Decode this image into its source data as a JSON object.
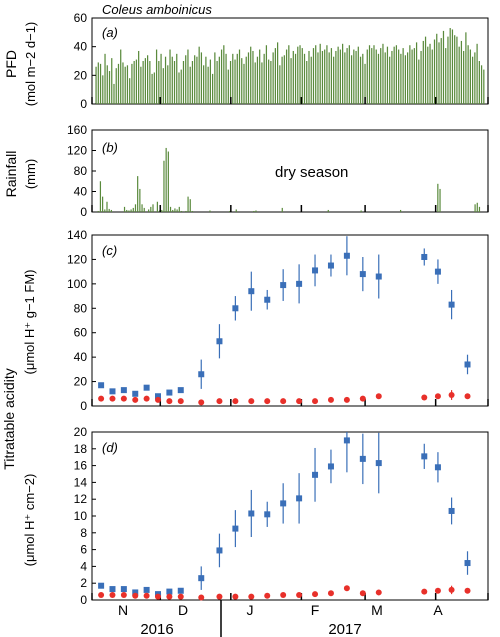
{
  "species": "Coleus amboinicus",
  "panel_labels": [
    "(a)",
    "(b)",
    "(c)",
    "(d)"
  ],
  "annotation": "dry season",
  "months": [
    "N",
    "D",
    "J",
    "F",
    "M",
    "A"
  ],
  "years": [
    "2016",
    "2017"
  ],
  "colors": {
    "pfd_bar": "#5a8a3c",
    "rain_bar": "#5a8a3c",
    "blue": "#3a6fb8",
    "red": "#e8302a",
    "axis": "#000000"
  },
  "chart_data": [
    {
      "type": "bar",
      "id": "a",
      "ylabel_line1": "PFD",
      "ylabel_line2": "(mol m−2 d−1)",
      "ylim": [
        0,
        60
      ],
      "yticks": [
        0,
        20,
        40,
        60
      ],
      "x_range_days": [
        0,
        174
      ],
      "values": [
        26,
        29,
        28,
        20,
        35,
        27,
        23,
        32,
        14,
        25,
        28,
        38,
        29,
        26,
        27,
        18,
        28,
        30,
        31,
        37,
        26,
        30,
        32,
        34,
        30,
        21,
        22,
        38,
        30,
        35,
        25,
        33,
        27,
        38,
        33,
        30,
        35,
        22,
        24,
        30,
        34,
        38,
        26,
        30,
        34,
        33,
        40,
        36,
        27,
        33,
        26,
        31,
        21,
        36,
        30,
        33,
        38,
        41,
        35,
        24,
        30,
        35,
        31,
        35,
        38,
        32,
        28,
        33,
        36,
        40,
        37,
        29,
        33,
        38,
        29,
        35,
        41,
        31,
        30,
        36,
        39,
        43,
        27,
        33,
        34,
        38,
        41,
        32,
        37,
        35,
        40,
        41,
        39,
        35,
        30,
        37,
        33,
        39,
        41,
        36,
        42,
        37,
        38,
        41,
        36,
        39,
        33,
        37,
        40,
        38,
        42,
        36,
        39,
        41,
        34,
        38,
        37,
        40,
        33,
        35,
        28,
        38,
        41,
        39,
        41,
        38,
        35,
        39,
        42,
        36,
        40,
        33,
        37,
        40,
        41,
        38,
        35,
        39,
        34,
        36,
        41,
        38,
        39,
        43,
        31,
        37,
        44,
        47,
        40,
        42,
        38,
        45,
        49,
        43,
        46,
        51,
        39,
        47,
        53,
        52,
        48,
        47,
        40,
        44,
        37,
        50,
        41,
        38,
        33,
        36,
        42,
        30,
        27,
        24
      ]
    },
    {
      "type": "bar",
      "id": "b",
      "ylabel_line1": "Rainfall",
      "ylabel_line2": "(mm)",
      "ylim": [
        0,
        160
      ],
      "yticks": [
        0,
        40,
        80,
        120,
        160
      ],
      "x_range_days": [
        0,
        174
      ],
      "values": [
        0,
        2,
        60,
        30,
        5,
        20,
        6,
        4,
        0,
        0,
        0,
        0,
        0,
        10,
        4,
        3,
        5,
        8,
        15,
        70,
        45,
        15,
        8,
        0,
        5,
        10,
        15,
        0,
        20,
        3,
        4,
        100,
        125,
        118,
        10,
        4,
        7,
        5,
        10,
        2,
        0,
        2,
        30,
        25,
        2,
        0,
        0,
        0,
        0,
        0,
        0,
        0,
        3,
        0,
        0,
        0,
        0,
        0,
        0,
        0,
        0,
        2,
        0,
        0,
        5,
        0,
        0,
        0,
        0,
        0,
        0,
        0,
        2,
        3,
        0,
        0,
        0,
        0,
        0,
        0,
        0,
        0,
        0,
        0,
        0,
        8,
        0,
        0,
        0,
        0,
        0,
        0,
        0,
        0,
        0,
        0,
        0,
        0,
        0,
        0,
        0,
        0,
        0,
        0,
        0,
        0,
        4,
        0,
        0,
        0,
        0,
        0,
        0,
        0,
        0,
        0,
        0,
        0,
        0,
        0,
        0,
        3,
        0,
        0,
        0,
        0,
        0,
        0,
        0,
        0,
        0,
        0,
        0,
        0,
        0,
        0,
        0,
        0,
        0,
        4,
        0,
        0,
        0,
        0,
        0,
        0,
        0,
        0,
        0,
        0,
        0,
        0,
        0,
        0,
        0,
        0,
        55,
        45,
        0,
        0,
        0,
        0,
        0,
        0,
        0,
        0,
        0,
        0,
        0,
        0,
        0,
        0,
        0,
        15,
        18,
        10,
        0,
        0
      ]
    },
    {
      "type": "scatter",
      "id": "c",
      "ylabel_line1": "Titratable acidity",
      "ylabel_line2": "(μmol H⁺ g−1 FM)",
      "ylim": [
        0,
        140
      ],
      "yticks": [
        0,
        20,
        40,
        60,
        80,
        100,
        120,
        140
      ],
      "x_range_days": [
        0,
        174
      ],
      "series": [
        {
          "color_key": "blue",
          "marker": "square",
          "points": [
            {
              "x": 4,
              "y": 17,
              "e": 0
            },
            {
              "x": 9,
              "y": 12,
              "e": 0
            },
            {
              "x": 14,
              "y": 13,
              "e": 0
            },
            {
              "x": 19,
              "y": 10,
              "e": 0
            },
            {
              "x": 24,
              "y": 15,
              "e": 0
            },
            {
              "x": 29,
              "y": 8,
              "e": 0
            },
            {
              "x": 34,
              "y": 11,
              "e": 0
            },
            {
              "x": 39,
              "y": 13,
              "e": 0
            },
            {
              "x": 48,
              "y": 26,
              "e": 12
            },
            {
              "x": 56,
              "y": 53,
              "e": 14
            },
            {
              "x": 63,
              "y": 80,
              "e": 10
            },
            {
              "x": 70,
              "y": 94,
              "e": 16
            },
            {
              "x": 77,
              "y": 87,
              "e": 8
            },
            {
              "x": 84,
              "y": 99,
              "e": 13
            },
            {
              "x": 91,
              "y": 100,
              "e": 16
            },
            {
              "x": 98,
              "y": 111,
              "e": 13
            },
            {
              "x": 105,
              "y": 115,
              "e": 9
            },
            {
              "x": 112,
              "y": 123,
              "e": 16
            },
            {
              "x": 119,
              "y": 108,
              "e": 14
            },
            {
              "x": 126,
              "y": 106,
              "e": 18
            },
            {
              "x": 146,
              "y": 122,
              "e": 7
            },
            {
              "x": 152,
              "y": 110,
              "e": 10
            },
            {
              "x": 158,
              "y": 83,
              "e": 12
            },
            {
              "x": 165,
              "y": 34,
              "e": 8
            }
          ]
        },
        {
          "color_key": "red",
          "marker": "circle",
          "points": [
            {
              "x": 4,
              "y": 6,
              "e": 0
            },
            {
              "x": 9,
              "y": 6,
              "e": 0
            },
            {
              "x": 14,
              "y": 6,
              "e": 0
            },
            {
              "x": 19,
              "y": 5,
              "e": 0
            },
            {
              "x": 24,
              "y": 6,
              "e": 0
            },
            {
              "x": 29,
              "y": 5,
              "e": 0
            },
            {
              "x": 34,
              "y": 4,
              "e": 0
            },
            {
              "x": 39,
              "y": 4,
              "e": 0
            },
            {
              "x": 48,
              "y": 3,
              "e": 0
            },
            {
              "x": 56,
              "y": 4,
              "e": 0
            },
            {
              "x": 63,
              "y": 4,
              "e": 0
            },
            {
              "x": 70,
              "y": 4,
              "e": 0
            },
            {
              "x": 77,
              "y": 4,
              "e": 0
            },
            {
              "x": 84,
              "y": 4,
              "e": 0
            },
            {
              "x": 91,
              "y": 4,
              "e": 0
            },
            {
              "x": 98,
              "y": 4,
              "e": 0
            },
            {
              "x": 105,
              "y": 5,
              "e": 0
            },
            {
              "x": 112,
              "y": 5,
              "e": 0
            },
            {
              "x": 119,
              "y": 6,
              "e": 0
            },
            {
              "x": 126,
              "y": 8,
              "e": 0
            },
            {
              "x": 146,
              "y": 7,
              "e": 0
            },
            {
              "x": 152,
              "y": 8,
              "e": 0
            },
            {
              "x": 158,
              "y": 9,
              "e": 4
            },
            {
              "x": 165,
              "y": 8,
              "e": 0
            }
          ]
        }
      ]
    },
    {
      "type": "scatter",
      "id": "d",
      "ylabel_line1": "",
      "ylabel_line2": "(μmol H⁺ cm−2)",
      "ylim": [
        0,
        20
      ],
      "yticks": [
        0,
        2,
        4,
        6,
        8,
        10,
        12,
        14,
        16,
        18,
        20
      ],
      "x_range_days": [
        0,
        174
      ],
      "series": [
        {
          "color_key": "blue",
          "marker": "square",
          "points": [
            {
              "x": 4,
              "y": 1.7,
              "e": 0
            },
            {
              "x": 9,
              "y": 1.3,
              "e": 0
            },
            {
              "x": 14,
              "y": 1.3,
              "e": 0
            },
            {
              "x": 19,
              "y": 0.9,
              "e": 0
            },
            {
              "x": 24,
              "y": 1.2,
              "e": 0
            },
            {
              "x": 29,
              "y": 0.7,
              "e": 0
            },
            {
              "x": 34,
              "y": 1.0,
              "e": 0
            },
            {
              "x": 39,
              "y": 1.1,
              "e": 0
            },
            {
              "x": 48,
              "y": 2.6,
              "e": 1.4
            },
            {
              "x": 56,
              "y": 5.9,
              "e": 2.0
            },
            {
              "x": 63,
              "y": 8.5,
              "e": 2.2
            },
            {
              "x": 70,
              "y": 10.3,
              "e": 2.8
            },
            {
              "x": 77,
              "y": 10.2,
              "e": 1.5
            },
            {
              "x": 84,
              "y": 11.5,
              "e": 2.4
            },
            {
              "x": 91,
              "y": 12.1,
              "e": 3.0
            },
            {
              "x": 98,
              "y": 14.9,
              "e": 3.2
            },
            {
              "x": 105,
              "y": 15.9,
              "e": 2.0
            },
            {
              "x": 112,
              "y": 19.0,
              "e": 3.8
            },
            {
              "x": 119,
              "y": 16.8,
              "e": 3.0
            },
            {
              "x": 126,
              "y": 16.3,
              "e": 3.6
            },
            {
              "x": 146,
              "y": 17.1,
              "e": 1.5
            },
            {
              "x": 152,
              "y": 15.8,
              "e": 1.8
            },
            {
              "x": 158,
              "y": 10.6,
              "e": 1.6
            },
            {
              "x": 165,
              "y": 4.4,
              "e": 1.4
            }
          ]
        },
        {
          "color_key": "red",
          "marker": "circle",
          "points": [
            {
              "x": 4,
              "y": 0.6,
              "e": 0
            },
            {
              "x": 9,
              "y": 0.6,
              "e": 0
            },
            {
              "x": 14,
              "y": 0.6,
              "e": 0
            },
            {
              "x": 19,
              "y": 0.5,
              "e": 0
            },
            {
              "x": 24,
              "y": 0.5,
              "e": 0
            },
            {
              "x": 29,
              "y": 0.4,
              "e": 0
            },
            {
              "x": 34,
              "y": 0.4,
              "e": 0
            },
            {
              "x": 39,
              "y": 0.4,
              "e": 0
            },
            {
              "x": 48,
              "y": 0.3,
              "e": 0
            },
            {
              "x": 56,
              "y": 0.4,
              "e": 0
            },
            {
              "x": 63,
              "y": 0.4,
              "e": 0
            },
            {
              "x": 70,
              "y": 0.4,
              "e": 0
            },
            {
              "x": 77,
              "y": 0.5,
              "e": 0
            },
            {
              "x": 84,
              "y": 0.6,
              "e": 0
            },
            {
              "x": 91,
              "y": 0.6,
              "e": 0
            },
            {
              "x": 98,
              "y": 0.7,
              "e": 0
            },
            {
              "x": 105,
              "y": 0.8,
              "e": 0
            },
            {
              "x": 112,
              "y": 1.4,
              "e": 0
            },
            {
              "x": 119,
              "y": 0.8,
              "e": 0
            },
            {
              "x": 126,
              "y": 0.9,
              "e": 0
            },
            {
              "x": 146,
              "y": 1.0,
              "e": 0
            },
            {
              "x": 152,
              "y": 1.1,
              "e": 0
            },
            {
              "x": 158,
              "y": 1.2,
              "e": 0.5
            },
            {
              "x": 165,
              "y": 1.1,
              "e": 0
            }
          ]
        }
      ]
    }
  ]
}
